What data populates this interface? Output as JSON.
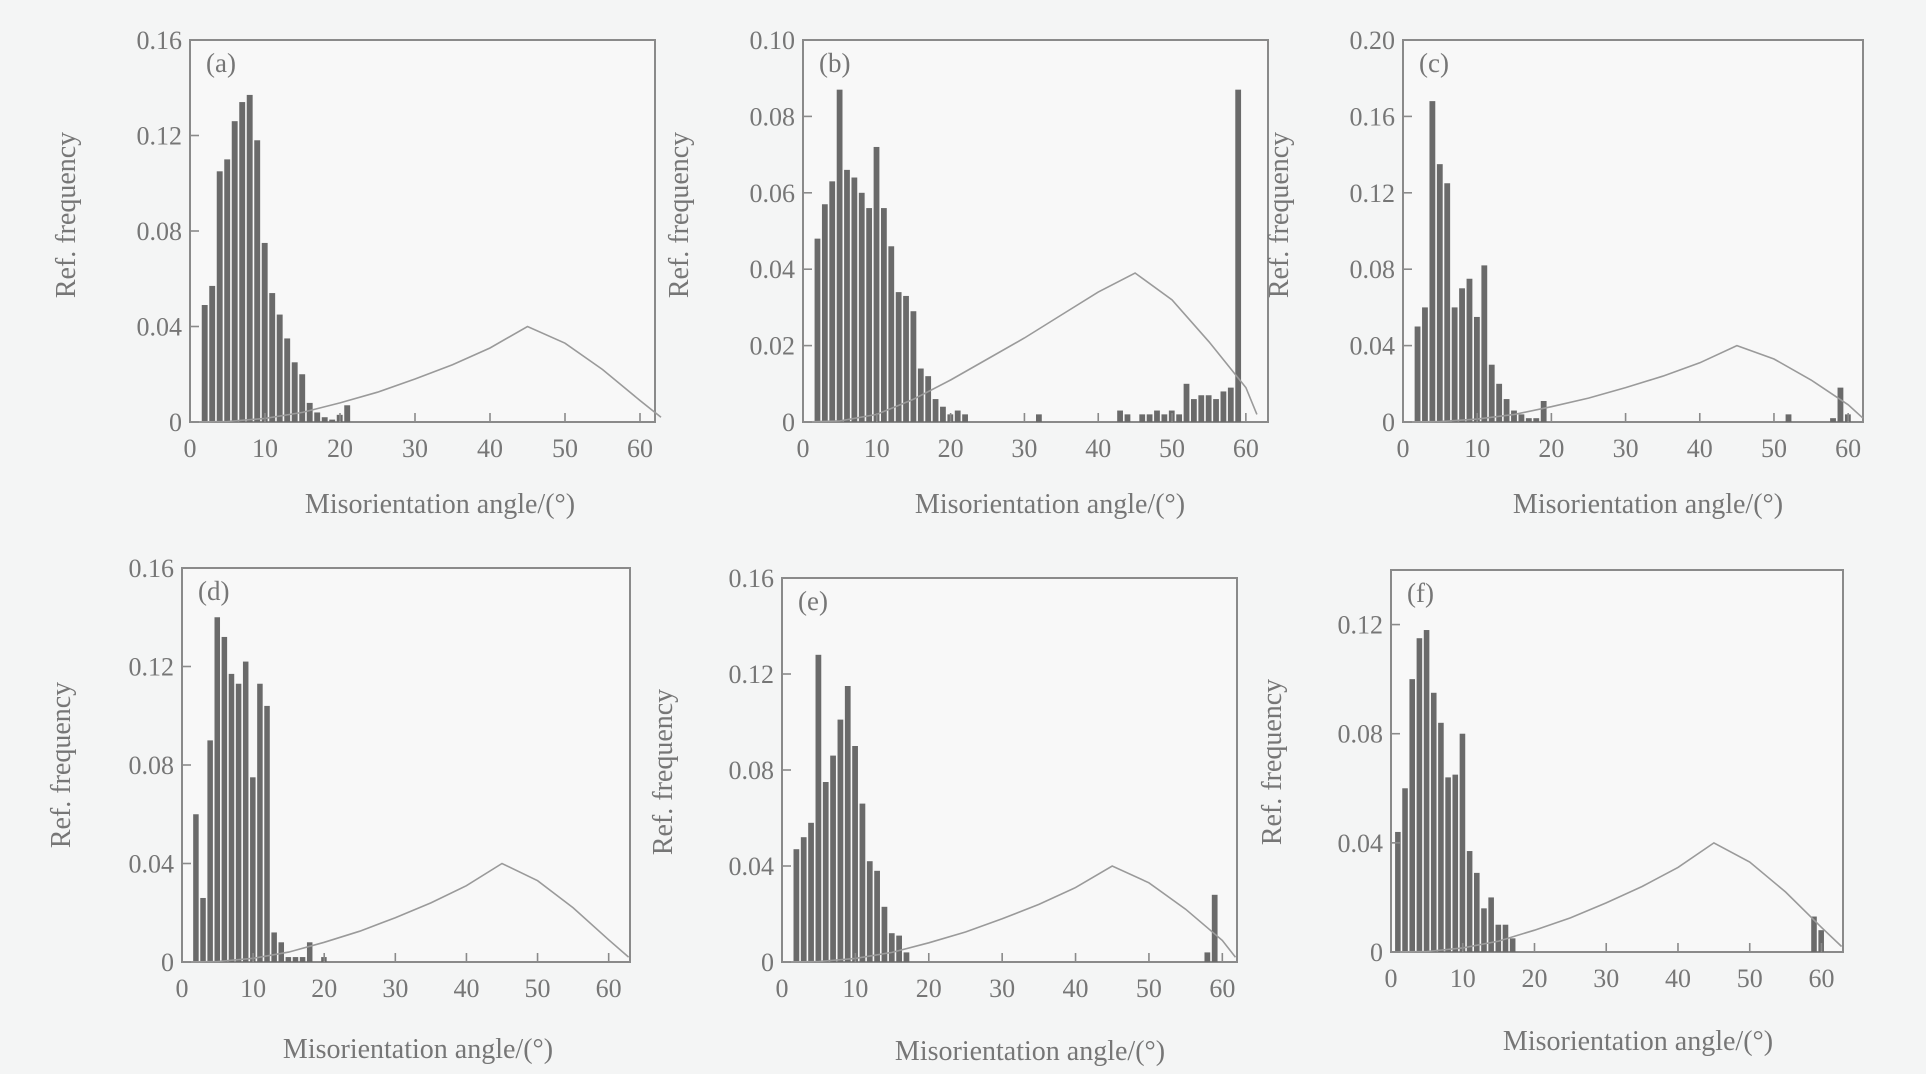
{
  "chart_data": [
    {
      "type": "bar",
      "panel_label": "(a)",
      "xlabel": "Misorientation angle/(°)",
      "ylabel": "Ref. frequency",
      "xlim": [
        0,
        62
      ],
      "ylim": [
        0,
        0.16
      ],
      "xticks": [
        "0",
        "10",
        "20",
        "30",
        "40",
        "50",
        "60"
      ],
      "yticks": [
        "0",
        "0.04",
        "0.08",
        "0.12",
        "0.16"
      ],
      "bin_width": 1,
      "x": [
        2,
        3,
        4,
        5,
        6,
        7,
        8,
        9,
        10,
        11,
        12,
        13,
        14,
        15,
        16,
        17,
        18,
        19,
        20,
        21
      ],
      "series": [
        {
          "values": [
            0.049,
            0.057,
            0.105,
            0.11,
            0.126,
            0.134,
            0.137,
            0.118,
            0.075,
            0.054,
            0.045,
            0.035,
            0.025,
            0.02,
            0.008,
            0.004,
            0.002,
            0.001,
            0.003,
            0.007
          ]
        },
        {
          "type": "line",
          "x": [
            0,
            5,
            10,
            15,
            20,
            25,
            30,
            35,
            40,
            45,
            50,
            55,
            60,
            62.8
          ],
          "values": [
            0,
            0.0002,
            0.0015,
            0.004,
            0.008,
            0.0125,
            0.018,
            0.024,
            0.031,
            0.04,
            0.033,
            0.022,
            0.009,
            0.002
          ]
        }
      ]
    },
    {
      "type": "bar",
      "panel_label": "(b)",
      "xlabel": "Misorientation angle/(°)",
      "ylabel": "Ref. frequency",
      "xlim": [
        0,
        63
      ],
      "ylim": [
        0,
        0.1
      ],
      "xticks": [
        "0",
        "10",
        "20",
        "30",
        "40",
        "50",
        "60"
      ],
      "yticks": [
        "0",
        "0.02",
        "0.04",
        "0.06",
        "0.08",
        "0.10"
      ],
      "bin_width": 1,
      "x": [
        2,
        3,
        4,
        5,
        6,
        7,
        8,
        9,
        10,
        11,
        12,
        13,
        14,
        15,
        16,
        17,
        18,
        19,
        20,
        21,
        22,
        32,
        43,
        44,
        46,
        47,
        48,
        49,
        50,
        51,
        52,
        53,
        54,
        55,
        56,
        57,
        58,
        59
      ],
      "series": [
        {
          "values": [
            0.048,
            0.057,
            0.063,
            0.087,
            0.066,
            0.064,
            0.06,
            0.056,
            0.072,
            0.056,
            0.046,
            0.034,
            0.033,
            0.029,
            0.014,
            0.012,
            0.006,
            0.004,
            0.002,
            0.003,
            0.002,
            0.002,
            0.003,
            0.002,
            0.002,
            0.002,
            0.003,
            0.002,
            0.003,
            0.002,
            0.01,
            0.006,
            0.007,
            0.007,
            0.006,
            0.008,
            0.009,
            0.087
          ]
        },
        {
          "type": "line",
          "x": [
            0,
            5,
            10,
            15,
            20,
            25,
            30,
            35,
            40,
            45,
            50,
            55,
            60,
            61.5
          ],
          "values": [
            0,
            0.0003,
            0.002,
            0.006,
            0.011,
            0.0165,
            0.022,
            0.028,
            0.034,
            0.039,
            0.032,
            0.021,
            0.009,
            0.002
          ]
        }
      ]
    },
    {
      "type": "bar",
      "panel_label": "(c)",
      "xlabel": "Misorientation angle/(°)",
      "ylabel": "Ref. frequency",
      "xlim": [
        0,
        62
      ],
      "ylim": [
        0,
        0.2
      ],
      "xticks": [
        "0",
        "10",
        "20",
        "30",
        "40",
        "50",
        "60"
      ],
      "yticks": [
        "0",
        "0.04",
        "0.08",
        "0.12",
        "0.16",
        "0.20"
      ],
      "bin_width": 1,
      "x": [
        2,
        3,
        4,
        5,
        6,
        7,
        8,
        9,
        10,
        11,
        12,
        13,
        14,
        15,
        16,
        17,
        18,
        19,
        52,
        58,
        59,
        60
      ],
      "series": [
        {
          "values": [
            0.05,
            0.06,
            0.168,
            0.135,
            0.125,
            0.06,
            0.07,
            0.075,
            0.055,
            0.082,
            0.03,
            0.02,
            0.012,
            0.006,
            0.004,
            0.002,
            0.002,
            0.011,
            0.004,
            0.002,
            0.018,
            0.004
          ]
        },
        {
          "type": "line",
          "x": [
            0,
            5,
            10,
            15,
            20,
            25,
            30,
            35,
            40,
            45,
            50,
            55,
            60,
            62
          ],
          "values": [
            0,
            0.0002,
            0.0015,
            0.004,
            0.008,
            0.0125,
            0.018,
            0.024,
            0.031,
            0.04,
            0.033,
            0.022,
            0.009,
            0.002
          ]
        }
      ]
    },
    {
      "type": "bar",
      "panel_label": "(d)",
      "xlabel": "Misorientation angle/(°)",
      "ylabel": "Ref. frequency",
      "xlim": [
        0,
        63
      ],
      "ylim": [
        0,
        0.16
      ],
      "xticks": [
        "0",
        "10",
        "20",
        "30",
        "40",
        "50",
        "60"
      ],
      "yticks": [
        "0",
        "0.04",
        "0.08",
        "0.12",
        "0.16"
      ],
      "bin_width": 1,
      "x": [
        2,
        3,
        4,
        5,
        6,
        7,
        8,
        9,
        10,
        11,
        12,
        13,
        14,
        15,
        16,
        17,
        18,
        20
      ],
      "series": [
        {
          "values": [
            0.06,
            0.026,
            0.09,
            0.14,
            0.132,
            0.117,
            0.113,
            0.122,
            0.075,
            0.113,
            0.104,
            0.012,
            0.008,
            0.002,
            0.002,
            0.002,
            0.008,
            0.002
          ]
        },
        {
          "type": "line",
          "x": [
            0,
            5,
            10,
            15,
            20,
            25,
            30,
            35,
            40,
            45,
            50,
            55,
            60,
            62.8
          ],
          "values": [
            0,
            0.0002,
            0.0015,
            0.004,
            0.008,
            0.0125,
            0.018,
            0.024,
            0.031,
            0.04,
            0.033,
            0.022,
            0.009,
            0.002
          ]
        }
      ]
    },
    {
      "type": "bar",
      "panel_label": "(e)",
      "xlabel": "Misorientation angle/(°)",
      "ylabel": "Ref. frequency",
      "xlim": [
        0,
        62
      ],
      "ylim": [
        0,
        0.16
      ],
      "xticks": [
        "0",
        "10",
        "20",
        "30",
        "40",
        "50",
        "60"
      ],
      "yticks": [
        "0",
        "0.04",
        "0.08",
        "0.12",
        "0.16"
      ],
      "bin_width": 1,
      "x": [
        2,
        3,
        4,
        5,
        6,
        7,
        8,
        9,
        10,
        11,
        12,
        13,
        14,
        15,
        16,
        17,
        58,
        59
      ],
      "series": [
        {
          "values": [
            0.047,
            0.052,
            0.058,
            0.128,
            0.075,
            0.086,
            0.101,
            0.115,
            0.09,
            0.066,
            0.042,
            0.038,
            0.023,
            0.012,
            0.011,
            0.004,
            0.004,
            0.028
          ]
        },
        {
          "type": "line",
          "x": [
            0,
            5,
            10,
            15,
            20,
            25,
            30,
            35,
            40,
            45,
            50,
            55,
            60,
            61.8
          ],
          "values": [
            0,
            0.0002,
            0.0015,
            0.004,
            0.008,
            0.0125,
            0.018,
            0.024,
            0.031,
            0.04,
            0.033,
            0.022,
            0.009,
            0.002
          ]
        }
      ]
    },
    {
      "type": "bar",
      "panel_label": "(f)",
      "xlabel": "Misorientation angle/(°)",
      "ylabel": "Ref. frequency",
      "xlim": [
        0,
        63
      ],
      "ylim": [
        0,
        0.14
      ],
      "xticks": [
        "0",
        "10",
        "20",
        "30",
        "40",
        "50",
        "60"
      ],
      "yticks": [
        "0",
        "0.04",
        "0.08",
        "0.12"
      ],
      "bin_width": 1,
      "x": [
        1,
        2,
        3,
        4,
        5,
        6,
        7,
        8,
        9,
        10,
        11,
        12,
        13,
        14,
        15,
        16,
        17,
        59,
        60
      ],
      "series": [
        {
          "values": [
            0.044,
            0.06,
            0.1,
            0.115,
            0.118,
            0.095,
            0.084,
            0.064,
            0.065,
            0.08,
            0.037,
            0.029,
            0.016,
            0.02,
            0.01,
            0.01,
            0.005,
            0.013,
            0.008
          ]
        },
        {
          "type": "line",
          "x": [
            0,
            5,
            10,
            15,
            20,
            25,
            30,
            35,
            40,
            45,
            50,
            55,
            60,
            62.8
          ],
          "values": [
            0,
            0.0002,
            0.0015,
            0.004,
            0.008,
            0.0125,
            0.018,
            0.024,
            0.031,
            0.04,
            0.033,
            0.022,
            0.009,
            0.002
          ]
        }
      ]
    }
  ]
}
